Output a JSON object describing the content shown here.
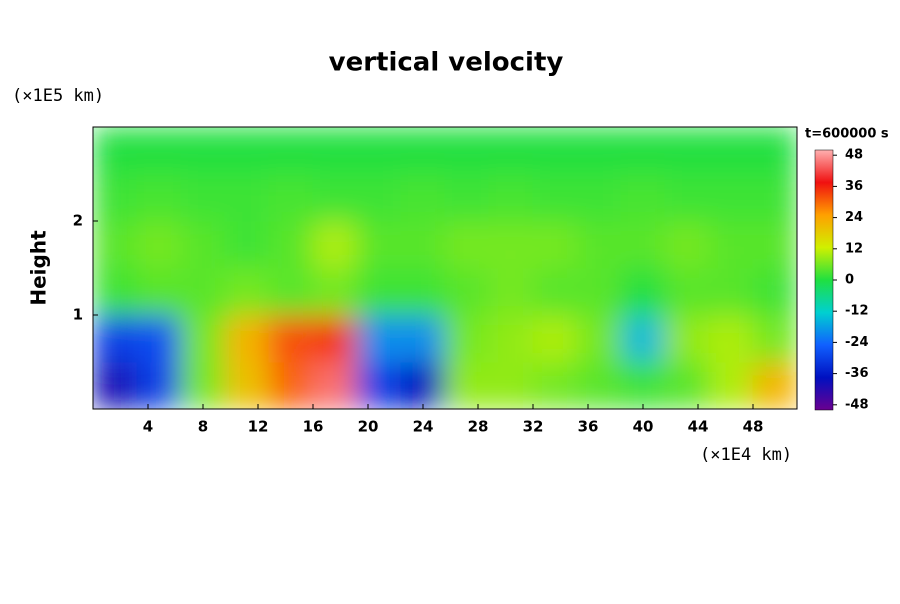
{
  "chart_data": {
    "type": "contourf",
    "title": "vertical velocity",
    "ylabel": "Height",
    "yunit": "(×1E5 km)",
    "xunit": "(×1E4 km)",
    "time_label": "t=600000 s",
    "xlim": [
      0,
      51.2
    ],
    "ylim": [
      0,
      3
    ],
    "xticks": [
      4,
      8,
      12,
      16,
      20,
      24,
      28,
      32,
      36,
      40,
      44,
      48
    ],
    "yticks": [
      1,
      2
    ],
    "x": [
      1.6,
      4.8,
      8,
      11.2,
      14.4,
      17.6,
      20.8,
      24,
      27.2,
      30.4,
      33.6,
      36.8,
      40,
      43.2,
      46.4,
      49.6
    ],
    "y": [
      0.25,
      0.75,
      1.25,
      1.75,
      2.25,
      2.75
    ],
    "z": [
      [
        -40,
        -30,
        6,
        20,
        30,
        45,
        -30,
        -38,
        8,
        8,
        6,
        4,
        2,
        4,
        10,
        22
      ],
      [
        -30,
        -28,
        6,
        22,
        32,
        34,
        -20,
        -20,
        6,
        8,
        10,
        6,
        -15,
        8,
        10,
        6
      ],
      [
        2,
        4,
        4,
        6,
        4,
        6,
        2,
        2,
        4,
        6,
        4,
        4,
        0,
        4,
        4,
        2
      ],
      [
        4,
        6,
        4,
        2,
        4,
        10,
        4,
        4,
        6,
        6,
        6,
        4,
        4,
        6,
        4,
        4
      ],
      [
        2,
        3,
        2,
        2,
        3,
        2,
        2,
        3,
        2,
        3,
        2,
        2,
        3,
        2,
        2,
        2
      ],
      [
        0,
        0,
        0,
        0,
        0,
        0,
        0,
        0,
        0,
        0,
        0,
        0,
        0,
        0,
        0,
        0
      ]
    ],
    "clim": [
      -50,
      50
    ],
    "cticks": [
      -48,
      -36,
      -24,
      -12,
      0,
      12,
      24,
      36,
      48
    ],
    "colormap": [
      "#6a0090",
      "#0010c0",
      "#1060ff",
      "#00d0d0",
      "#20e040",
      "#d0f000",
      "#ffa000",
      "#f01010",
      "#ffb0b0"
    ]
  }
}
